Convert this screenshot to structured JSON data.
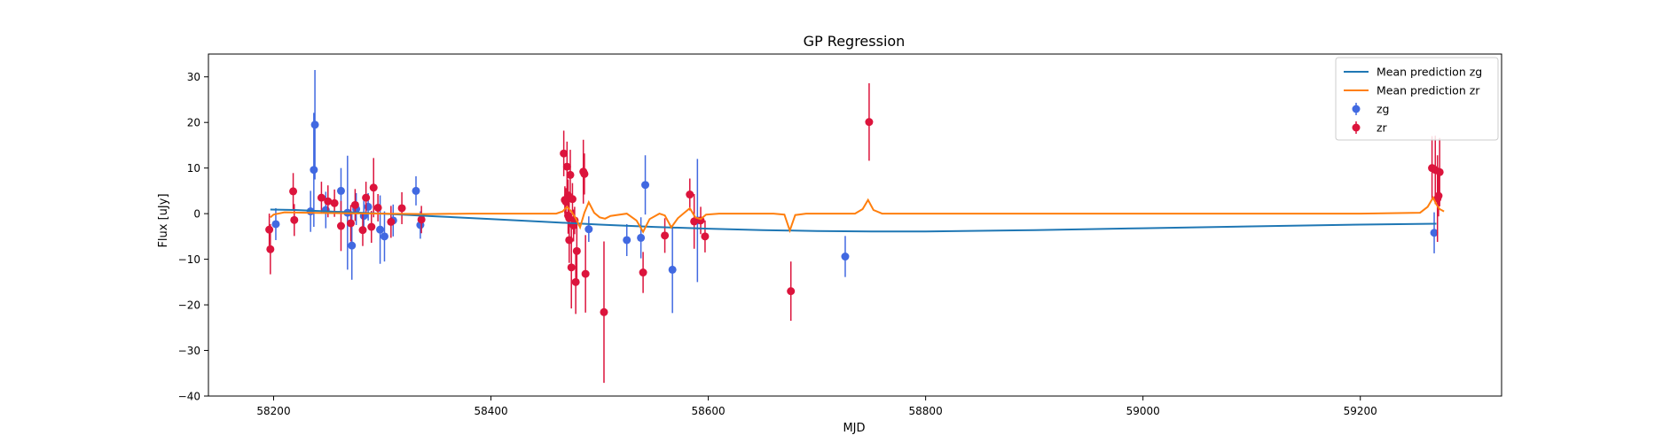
{
  "chart_data": {
    "type": "scatter",
    "title": "GP Regression",
    "xlabel": "MJD",
    "ylabel": "Flux [uJy]",
    "xlim": [
      58140,
      59330
    ],
    "ylim": [
      -40,
      35
    ],
    "x_ticks": [
      58200,
      58400,
      58600,
      58800,
      59000,
      59200
    ],
    "y_ticks": [
      -40,
      -30,
      -20,
      -10,
      0,
      10,
      20,
      30
    ],
    "grid": false,
    "legend": {
      "placement": "top-right",
      "entries": [
        {
          "label": "Mean prediction zg",
          "kind": "line",
          "color": "#1f77b4"
        },
        {
          "label": "Mean prediction zr",
          "kind": "line",
          "color": "#ff7f0e"
        },
        {
          "label": "zg",
          "kind": "errorbar",
          "color": "#4169e1"
        },
        {
          "label": "zr",
          "kind": "errorbar",
          "color": "#dc143c"
        }
      ]
    },
    "series": [
      {
        "name": "Mean prediction zg",
        "kind": "line",
        "color": "#1f77b4",
        "x": [
          58197,
          58220,
          58250,
          58300,
          58350,
          58400,
          58450,
          58500,
          58550,
          58600,
          58650,
          58700,
          58750,
          58800,
          58900,
          59000,
          59100,
          59200,
          59270
        ],
        "y": [
          0.9,
          0.8,
          0.5,
          0.0,
          -0.6,
          -1.2,
          -1.8,
          -2.4,
          -2.9,
          -3.3,
          -3.6,
          -3.8,
          -3.9,
          -3.9,
          -3.6,
          -3.2,
          -2.8,
          -2.4,
          -2.2
        ]
      },
      {
        "name": "Mean prediction zr",
        "kind": "line",
        "color": "#ff7f0e",
        "x": [
          58197,
          58200,
          58210,
          58230,
          58260,
          58300,
          58340,
          58380,
          58440,
          58460,
          58466,
          58470,
          58474,
          58478,
          58482,
          58486,
          58490,
          58495,
          58500,
          58505,
          58510,
          58525,
          58534,
          58540,
          58546,
          58555,
          58560,
          58566,
          58572,
          58578,
          58583,
          58588,
          58593,
          58598,
          58610,
          58660,
          58670,
          58675,
          58680,
          58690,
          58735,
          58742,
          58747,
          58752,
          58760,
          58800,
          59000,
          59200,
          59255,
          59262,
          59267,
          59270,
          59273,
          59277
        ],
        "y": [
          -0.8,
          -0.2,
          0.3,
          0.2,
          0.1,
          0.0,
          -0.1,
          0.0,
          0.0,
          0.0,
          0.5,
          1.5,
          0.5,
          -1.0,
          -3.0,
          0.2,
          2.5,
          0.2,
          -0.8,
          -1.1,
          -0.5,
          0.0,
          -1.5,
          -4.0,
          -1.2,
          0.0,
          -0.4,
          -3.0,
          -1.0,
          0.2,
          1.2,
          -0.8,
          -1.2,
          -0.2,
          0.0,
          0.0,
          -0.2,
          -3.7,
          -0.3,
          0.0,
          0.0,
          1.0,
          3.0,
          0.8,
          0.0,
          0.0,
          0.0,
          0.0,
          0.2,
          1.5,
          3.5,
          2.0,
          1.0,
          0.5
        ]
      },
      {
        "name": "zg",
        "kind": "errorbar",
        "color": "#4169e1",
        "points": [
          {
            "x": 58202,
            "y": -2.3,
            "err": 3.5
          },
          {
            "x": 58234,
            "y": 0.5,
            "err": 4.5
          },
          {
            "x": 58237,
            "y": 9.6,
            "err": 12.5
          },
          {
            "x": 58238,
            "y": 19.5,
            "err": 12.0
          },
          {
            "x": 58248,
            "y": 0.8,
            "err": 4.0
          },
          {
            "x": 58262,
            "y": 5.0,
            "err": 5.0
          },
          {
            "x": 58268,
            "y": 0.2,
            "err": 12.5
          },
          {
            "x": 58272,
            "y": -7.0,
            "err": 7.5
          },
          {
            "x": 58276,
            "y": 1.0,
            "err": 3.5
          },
          {
            "x": 58283,
            "y": -0.5,
            "err": 3.5
          },
          {
            "x": 58287,
            "y": 1.5,
            "err": 3.0
          },
          {
            "x": 58298,
            "y": -3.5,
            "err": 7.5
          },
          {
            "x": 58302,
            "y": -5.0,
            "err": 5.5
          },
          {
            "x": 58310,
            "y": -1.5,
            "err": 3.5
          },
          {
            "x": 58331,
            "y": 5.0,
            "err": 3.2
          },
          {
            "x": 58335,
            "y": -2.5,
            "err": 3.0
          },
          {
            "x": 58490,
            "y": -3.4,
            "err": 2.8
          },
          {
            "x": 58525,
            "y": -5.8,
            "err": 3.5
          },
          {
            "x": 58538,
            "y": -5.3,
            "err": 4.5
          },
          {
            "x": 58542,
            "y": 6.3,
            "err": 6.5
          },
          {
            "x": 58567,
            "y": -12.3,
            "err": 9.5
          },
          {
            "x": 58590,
            "y": -1.5,
            "err": 13.5
          },
          {
            "x": 58726,
            "y": -9.4,
            "err": 4.5
          },
          {
            "x": 59268,
            "y": -4.2,
            "err": 4.5
          }
        ]
      },
      {
        "name": "zr",
        "kind": "errorbar",
        "color": "#dc143c",
        "points": [
          {
            "x": 58196,
            "y": -3.5,
            "err": 3.5
          },
          {
            "x": 58197,
            "y": -7.8,
            "err": 5.5
          },
          {
            "x": 58218,
            "y": 4.9,
            "err": 4.0
          },
          {
            "x": 58219,
            "y": -1.4,
            "err": 3.5
          },
          {
            "x": 58244,
            "y": 3.5,
            "err": 3.5
          },
          {
            "x": 58250,
            "y": 2.7,
            "err": 3.5
          },
          {
            "x": 58256,
            "y": 2.3,
            "err": 3.0
          },
          {
            "x": 58262,
            "y": -2.7,
            "err": 5.5
          },
          {
            "x": 58271,
            "y": -2.1,
            "err": 4.0
          },
          {
            "x": 58275,
            "y": 1.9,
            "err": 3.5
          },
          {
            "x": 58282,
            "y": -3.6,
            "err": 3.5
          },
          {
            "x": 58285,
            "y": 3.5,
            "err": 3.5
          },
          {
            "x": 58290,
            "y": -2.9,
            "err": 3.5
          },
          {
            "x": 58292,
            "y": 5.7,
            "err": 6.5
          },
          {
            "x": 58296,
            "y": 1.3,
            "err": 3.0
          },
          {
            "x": 58308,
            "y": -1.8,
            "err": 3.5
          },
          {
            "x": 58318,
            "y": 1.2,
            "err": 3.5
          },
          {
            "x": 58336,
            "y": -1.3,
            "err": 3.0
          },
          {
            "x": 58467,
            "y": 13.2,
            "err": 5.0
          },
          {
            "x": 58468,
            "y": 3.0,
            "err": 3.0
          },
          {
            "x": 58469,
            "y": 2.6,
            "err": 3.0
          },
          {
            "x": 58470,
            "y": 10.3,
            "err": 5.5
          },
          {
            "x": 58471,
            "y": 4.0,
            "err": 3.5
          },
          {
            "x": 58471,
            "y": -0.4,
            "err": 4.0
          },
          {
            "x": 58472,
            "y": -1.0,
            "err": 4.0
          },
          {
            "x": 58472,
            "y": -5.8,
            "err": 5.0
          },
          {
            "x": 58473,
            "y": 8.5,
            "err": 5.5
          },
          {
            "x": 58474,
            "y": -11.8,
            "err": 9.0
          },
          {
            "x": 58475,
            "y": 3.2,
            "err": 3.5
          },
          {
            "x": 58476,
            "y": -2.6,
            "err": 3.5
          },
          {
            "x": 58477,
            "y": -1.5,
            "err": 3.0
          },
          {
            "x": 58478,
            "y": -15.0,
            "err": 7.0
          },
          {
            "x": 58479,
            "y": -8.2,
            "err": 6.5
          },
          {
            "x": 58485,
            "y": 9.2,
            "err": 7.0
          },
          {
            "x": 58486,
            "y": 8.7,
            "err": 4.5
          },
          {
            "x": 58487,
            "y": -13.2,
            "err": 8.5
          },
          {
            "x": 58504,
            "y": -21.6,
            "err": 15.5
          },
          {
            "x": 58540,
            "y": -12.9,
            "err": 4.5
          },
          {
            "x": 58560,
            "y": -4.8,
            "err": 3.8
          },
          {
            "x": 58583,
            "y": 4.2,
            "err": 3.5
          },
          {
            "x": 58587,
            "y": -1.7,
            "err": 6.0
          },
          {
            "x": 58593,
            "y": -1.5,
            "err": 3.0
          },
          {
            "x": 58597,
            "y": -5.0,
            "err": 3.5
          },
          {
            "x": 58676,
            "y": -17.0,
            "err": 6.5
          },
          {
            "x": 58748,
            "y": 20.1,
            "err": 8.5
          },
          {
            "x": 59266,
            "y": 10.0,
            "err": 7.0
          },
          {
            "x": 59269,
            "y": 9.6,
            "err": 7.5
          },
          {
            "x": 59271,
            "y": 3.3,
            "err": 9.5
          },
          {
            "x": 59272,
            "y": 3.9,
            "err": 4.5
          },
          {
            "x": 59273,
            "y": 9.1,
            "err": 7.5
          }
        ]
      }
    ]
  }
}
